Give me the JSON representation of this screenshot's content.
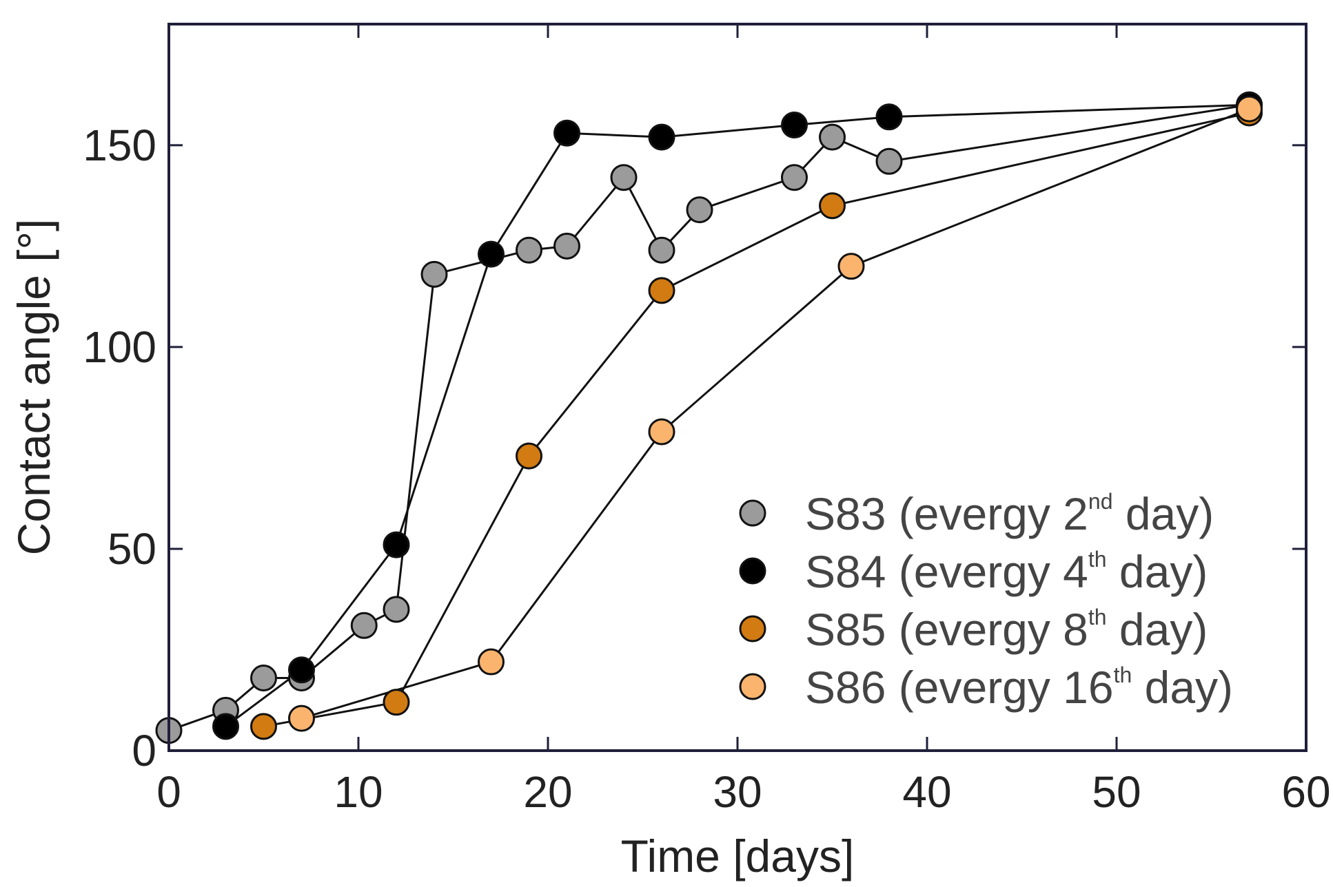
{
  "chart_data": {
    "type": "line",
    "title": "",
    "xlabel": "Time [days]",
    "ylabel": "Contact angle [°]",
    "xlim": [
      0,
      60
    ],
    "ylim": [
      0,
      180
    ],
    "xticks": [
      0,
      10,
      20,
      30,
      40,
      50,
      60
    ],
    "yticks": [
      0,
      50,
      100,
      150
    ],
    "grid": false,
    "legend_position": "bottom-right",
    "series": [
      {
        "name": "S83",
        "legend_prefix": "S83 (evergy 2",
        "legend_sup": "nd",
        "legend_suffix": " day)",
        "color": "#9b9b9b",
        "x": [
          0,
          3,
          5,
          7,
          10.3,
          12,
          14,
          19,
          21,
          24,
          26,
          28,
          33,
          35,
          38,
          57
        ],
        "y": [
          5,
          10,
          18,
          18,
          31,
          35,
          118,
          124,
          125,
          142,
          124,
          134,
          142,
          152,
          146,
          160
        ]
      },
      {
        "name": "S84",
        "legend_prefix": "S84 (evergy 4",
        "legend_sup": "th",
        "legend_suffix": " day)",
        "color": "#000000",
        "x": [
          3,
          7,
          12,
          17,
          21,
          26,
          33,
          38,
          57
        ],
        "y": [
          6,
          20,
          51,
          123,
          153,
          152,
          155,
          157,
          160
        ]
      },
      {
        "name": "S85",
        "legend_prefix": "S85 (evergy 8",
        "legend_sup": "th",
        "legend_suffix": " day)",
        "color": "#d17b12",
        "x": [
          5,
          12,
          19,
          26,
          35,
          57
        ],
        "y": [
          6,
          12,
          73,
          114,
          135,
          158
        ]
      },
      {
        "name": "S86",
        "legend_prefix": "S86 (evergy 16",
        "legend_sup": "th",
        "legend_suffix": " day)",
        "color": "#fbb46e",
        "x": [
          7,
          17,
          26,
          36,
          57
        ],
        "y": [
          8,
          22,
          79,
          120,
          159
        ]
      }
    ]
  }
}
